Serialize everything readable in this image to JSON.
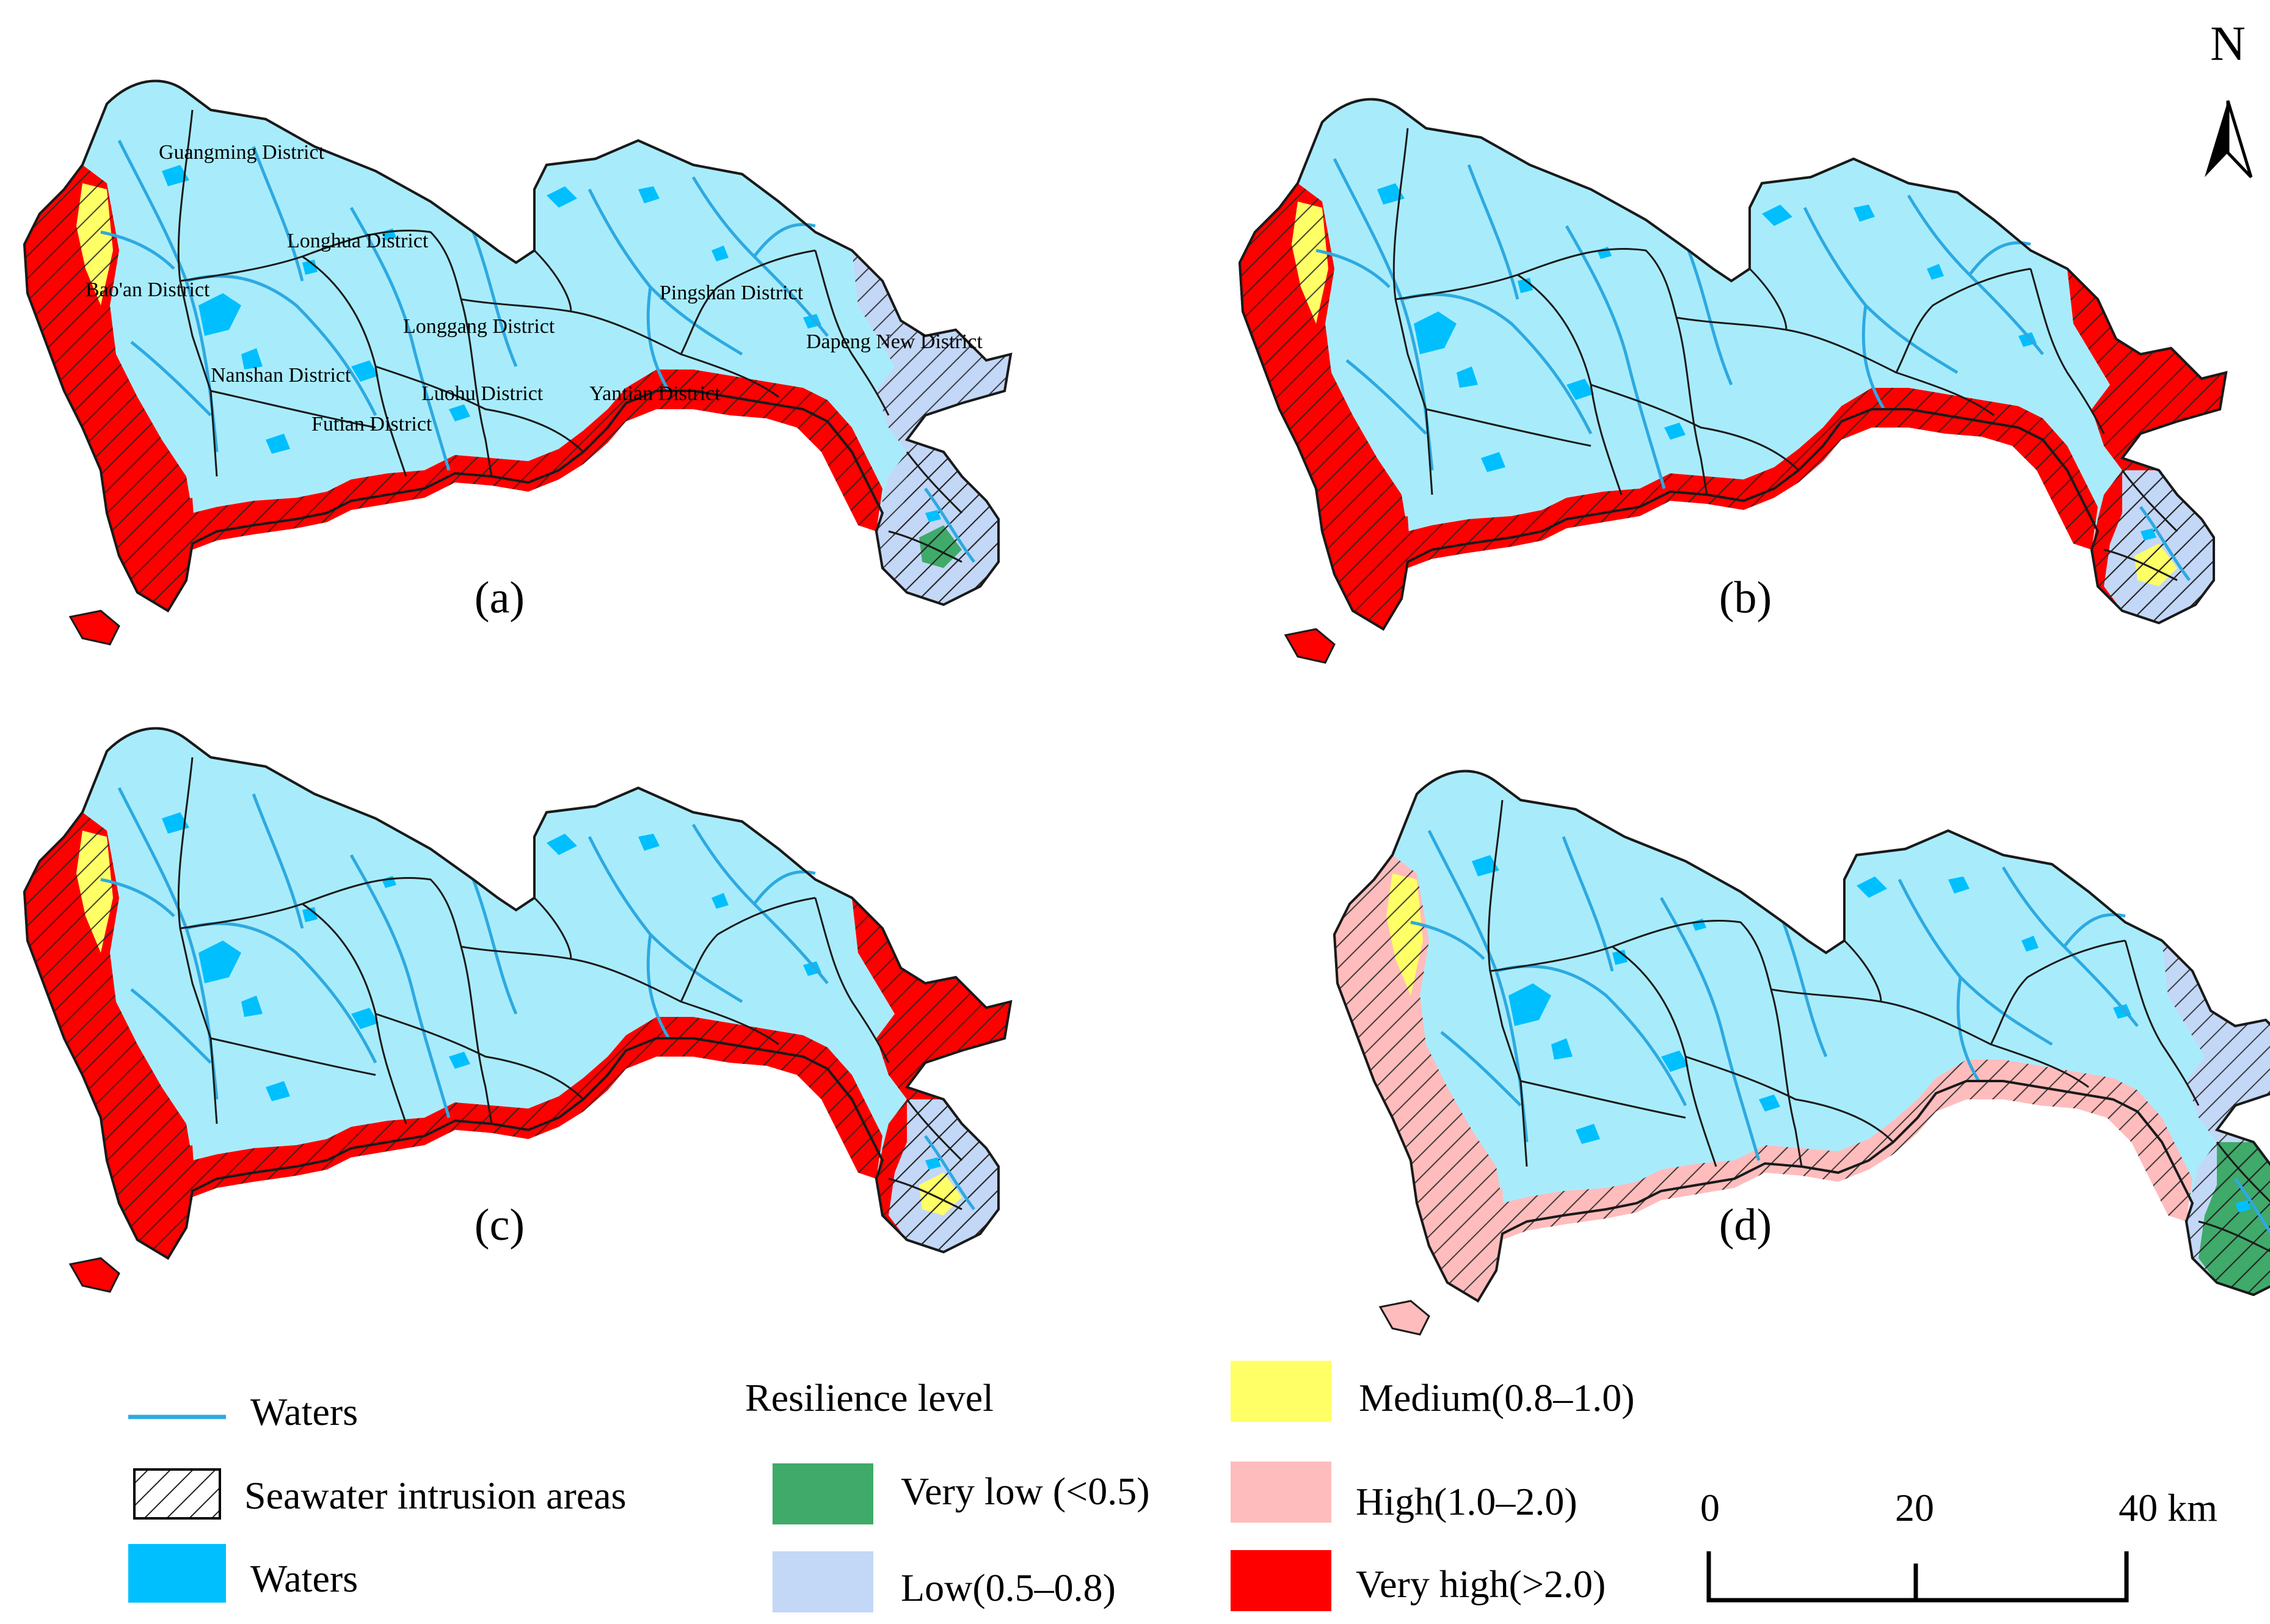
{
  "north": {
    "label": "N"
  },
  "panels": [
    {
      "label": "(a)",
      "scenario": "a"
    },
    {
      "label": "(b)",
      "scenario": "b"
    },
    {
      "label": "(c)",
      "scenario": "c"
    },
    {
      "label": "(d)",
      "scenario": "d"
    }
  ],
  "districts": [
    "Guangming District",
    "Longhua District",
    "Bao'an District",
    "Longgang District",
    "Pingshan District",
    "Dapeng New District",
    "Nanshan District",
    "Luohu District",
    "Yantian District",
    "Futian District"
  ],
  "legend": {
    "waters_line": "Waters",
    "intrusion": "Seawater intrusion areas",
    "waters_fill": "Waters",
    "title": "Resilience level",
    "levels": [
      {
        "label": "Very low (<0.5)",
        "color": "#3faa6a"
      },
      {
        "label": "Low(0.5–0.8)",
        "color": "#c3d7f7"
      },
      {
        "label": "Medium(0.8–1.0)",
        "color": "#ffff66"
      },
      {
        "label": "High(1.0–2.0)",
        "color": "#ffbcbc"
      },
      {
        "label": "Very high(>2.0)",
        "color": "#ff0000"
      }
    ]
  },
  "scale": {
    "ticks": [
      "0",
      "20",
      "40 km"
    ]
  },
  "colors": {
    "land": "#a8ecfc",
    "water_fill": "#00bfff",
    "water_line": "#2ea9e0",
    "district_border": "#1a1a1a"
  }
}
